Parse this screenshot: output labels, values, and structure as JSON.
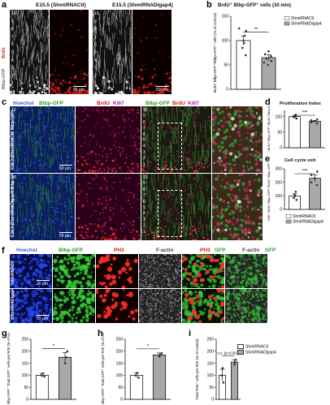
{
  "figure": {
    "panels": {
      "a": {
        "letter": "a",
        "titles": [
          "E15.5 (ShmiRNACtl)",
          "E15.5 (ShmiRNADlgap4)"
        ],
        "side_label_red": "BrdU",
        "side_label_white": "Blbp-GFP",
        "layers": [
          "10",
          "9",
          "8",
          "7",
          "6",
          "5",
          "4",
          "3",
          "2",
          "1"
        ],
        "scale": "50 μm",
        "colors": {
          "white": "#e8e8e8",
          "red": "#d81414"
        }
      },
      "b": {
        "letter": "b",
        "title": "BrdU⁺ Blbp-GFP⁺ cells (30 min)",
        "sig": "**"
      },
      "c": {
        "letter": "c",
        "header": {
          "hoechst": "Hoechst",
          "blbp": "Blbp-GFP",
          "brdu": "BrdU",
          "ki67": "Ki67",
          "blbp2": "Blbp-GFP",
          "brdu2": "BrdU",
          "ki67_2": "Ki67"
        },
        "row1_label": "E16.5 (ShmiRNACtl/ Blbp-GFP)",
        "row2_label": "E16.5 (ShmiRNADlgap4/ Blbp-GFP)",
        "layers": [
          "10",
          "9",
          "8",
          "7",
          "6",
          "5",
          "4",
          "3",
          "2",
          "1"
        ],
        "scale": "50 μm"
      },
      "d": {
        "letter": "d",
        "title": "Proliferation Index",
        "sig": "***"
      },
      "e": {
        "letter": "e",
        "title": "Cell cycle exit",
        "sig": "***"
      },
      "f": {
        "letter": "f",
        "header": {
          "hoechst": "Hoechst",
          "blbp": "Blbp-GFP",
          "ph3": "PH3",
          "factin": "F-actin",
          "ph3_2": "PH3",
          "gfp": "GFP",
          "factin_2": "F-actin",
          "gfp_2": "GFP"
        },
        "row1_label": "ShmiRNACtl",
        "row2_label": "ShmiRNADlgap4",
        "scale": "20 μm"
      },
      "g": {
        "letter": "g",
        "sig": "*"
      },
      "h": {
        "letter": "h",
        "sig": "*"
      },
      "i": {
        "letter": "i",
        "sig": "n.s. (p=0.052)"
      }
    },
    "legend": {
      "ctl": "ShmiRNACtl",
      "kd": "ShmiRNADlgap4"
    }
  },
  "chart_data": [
    {
      "panel": "b",
      "type": "bar",
      "categories": [
        "ShmiRNACtl",
        "ShmiRNADlgap4"
      ],
      "values": [
        100,
        65
      ],
      "errors": [
        9,
        6
      ],
      "points": [
        [
          70,
          85,
          95,
          100,
          110,
          120,
          125
        ],
        [
          50,
          55,
          58,
          63,
          68,
          72,
          78
        ]
      ],
      "ylabel": "BrdU⁺Blbp-GFP⁺/Blbp-GFP⁺ cells (% of control)",
      "ylim": [
        0,
        150
      ],
      "ticks": [
        0,
        50,
        100,
        150
      ],
      "colors": [
        "#ffffff",
        "#a8a8a8"
      ]
    },
    {
      "panel": "d",
      "type": "bar",
      "categories": [
        "ShmiRNACtl",
        "ShmiRNADlgap4"
      ],
      "values": [
        100,
        85
      ],
      "errors": [
        3,
        3
      ],
      "points": [
        [
          94,
          98,
          100,
          103,
          106
        ],
        [
          78,
          82,
          85,
          88,
          91
        ]
      ],
      "ylabel": "Ki67⁺BrdU⁺Blbp-GFP⁺/BrdU⁺Blbp-GFP⁺",
      "ylim": [
        0,
        120
      ],
      "ticks": [
        0,
        50,
        100
      ],
      "colors": [
        "#ffffff",
        "#a8a8a8"
      ]
    },
    {
      "panel": "e",
      "type": "bar",
      "categories": [
        "ShmiRNACtl",
        "ShmiRNADlgap4"
      ],
      "values": [
        100,
        230
      ],
      "errors": [
        15,
        25
      ],
      "points": [
        [
          70,
          85,
          100,
          110,
          130
        ],
        [
          180,
          200,
          230,
          255,
          280
        ]
      ],
      "ylabel": "Ki67⁻BrdU⁺Blbp-GFP⁺/BrdU⁺Blbp-GFP⁺ %",
      "ylim": [
        0,
        300
      ],
      "ticks": [
        0,
        100,
        200,
        300
      ],
      "colors": [
        "#ffffff",
        "#a8a8a8"
      ]
    },
    {
      "panel": "g",
      "type": "bar",
      "categories": [
        "ShmiRNACtl",
        "ShmiRNADlgap4"
      ],
      "values": [
        100,
        175
      ],
      "errors": [
        8,
        20
      ],
      "points": [
        [
          95,
          100,
          108
        ],
        [
          150,
          175,
          200
        ]
      ],
      "ylabel": "PH3⁺Blbp-GFP⁺ Total GFP⁺ cells per ROI (% of control)",
      "ylim": [
        0,
        250
      ],
      "ticks": [
        0,
        50,
        100,
        150,
        200,
        250
      ],
      "colors": [
        "#ffffff",
        "#a8a8a8"
      ]
    },
    {
      "panel": "h",
      "type": "bar",
      "categories": [
        "ShmiRNACtl",
        "ShmiRNADlgap4"
      ],
      "values": [
        100,
        185
      ],
      "errors": [
        10,
        8
      ],
      "points": [
        [
          90,
          100,
          110
        ],
        [
          178,
          185,
          192
        ]
      ],
      "ylabel": "PH3⁺Blbp-GFP⁺ Total GFP⁺ cells per ROI (% of control)",
      "ylim": [
        0,
        250
      ],
      "ticks": [
        0,
        50,
        100,
        150,
        200,
        250
      ],
      "colors": [
        "#ffffff",
        "#a8a8a8"
      ]
    },
    {
      "panel": "i",
      "type": "bar",
      "categories": [
        "ShmiRNACtl",
        "ShmiRNADlgap4"
      ],
      "values": [
        100,
        155
      ],
      "errors": [
        25,
        10
      ],
      "points": [
        [
          70,
          100,
          130
        ],
        [
          145,
          155,
          165
        ]
      ],
      "ylabel": "Total PH3⁺ cells per ROI (% of control)",
      "ylim": [
        0,
        250
      ],
      "ticks": [
        0,
        50,
        100,
        150,
        200,
        250
      ],
      "colors": [
        "#ffffff",
        "#a8a8a8"
      ]
    }
  ]
}
